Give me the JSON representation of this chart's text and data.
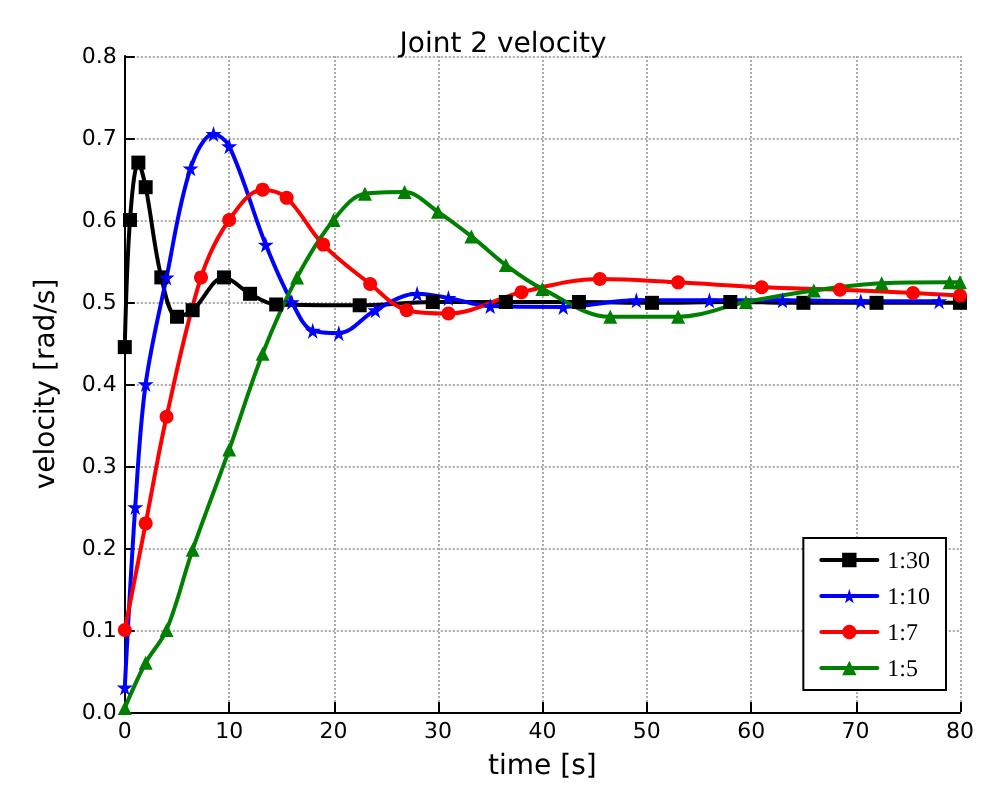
{
  "chart_data": {
    "type": "line",
    "title": "Joint 2 velocity",
    "xlabel": "time [s]",
    "ylabel": "velocity [rad/s]",
    "xlim": [
      0,
      80
    ],
    "xticks": [
      0,
      10,
      20,
      30,
      40,
      50,
      60,
      70,
      80
    ],
    "ylim": [
      0,
      0.8
    ],
    "yticks": [
      {
        "value": 0,
        "label": "0.0"
      },
      0.1,
      0.2,
      0.3,
      0.4,
      0.5,
      0.6,
      0.7,
      0.8
    ],
    "grid": true,
    "legend": "bottom right",
    "series": [
      {
        "name": "1:30",
        "color": "#000000",
        "marker": "square",
        "x": [
          0,
          0.5,
          1.3,
          2,
          3.5,
          5,
          6.5,
          9.5,
          12,
          14.5,
          22.5,
          29.5,
          36.5,
          43.5,
          50.5,
          58,
          65,
          72,
          80
        ],
        "values": [
          0.445,
          0.6,
          0.67,
          0.64,
          0.53,
          0.482,
          0.49,
          0.53,
          0.51,
          0.497,
          0.496,
          0.5,
          0.5,
          0.5,
          0.499,
          0.5,
          0.499,
          0.499,
          0.499
        ]
      },
      {
        "name": "1:10",
        "color": "#0000ff",
        "marker": "star",
        "x": [
          0,
          1,
          2,
          4,
          6.3,
          8.5,
          10,
          13.5,
          16,
          18,
          20.5,
          24,
          28,
          31,
          35,
          42,
          49,
          56,
          63,
          70.5,
          78
        ],
        "values": [
          0.03,
          0.25,
          0.4,
          0.53,
          0.663,
          0.705,
          0.69,
          0.57,
          0.5,
          0.465,
          0.462,
          0.49,
          0.51,
          0.505,
          0.495,
          0.494,
          0.502,
          0.502,
          0.502,
          0.501,
          0.501
        ]
      },
      {
        "name": "1:7",
        "color": "#ff0000",
        "marker": "circle",
        "x": [
          0,
          2,
          4,
          7.3,
          10,
          13.2,
          15.5,
          19,
          23.5,
          27,
          31,
          38,
          45.5,
          53,
          61,
          68.5,
          75.5,
          80
        ],
        "values": [
          0.1,
          0.23,
          0.36,
          0.53,
          0.6,
          0.637,
          0.627,
          0.57,
          0.522,
          0.49,
          0.486,
          0.512,
          0.528,
          0.524,
          0.518,
          0.515,
          0.511,
          0.508
        ]
      },
      {
        "name": "1:5",
        "color": "#008000",
        "marker": "triangle",
        "x": [
          0,
          2,
          4,
          6.5,
          10,
          13.2,
          16.5,
          20,
          23,
          26.8,
          30,
          33.2,
          36.5,
          40,
          46.5,
          53,
          59.5,
          66,
          72.5,
          79,
          80
        ],
        "values": [
          0.005,
          0.06,
          0.1,
          0.198,
          0.32,
          0.437,
          0.53,
          0.6,
          0.632,
          0.634,
          0.61,
          0.58,
          0.545,
          0.516,
          0.482,
          0.482,
          0.5,
          0.514,
          0.523,
          0.524,
          0.524
        ]
      }
    ]
  }
}
